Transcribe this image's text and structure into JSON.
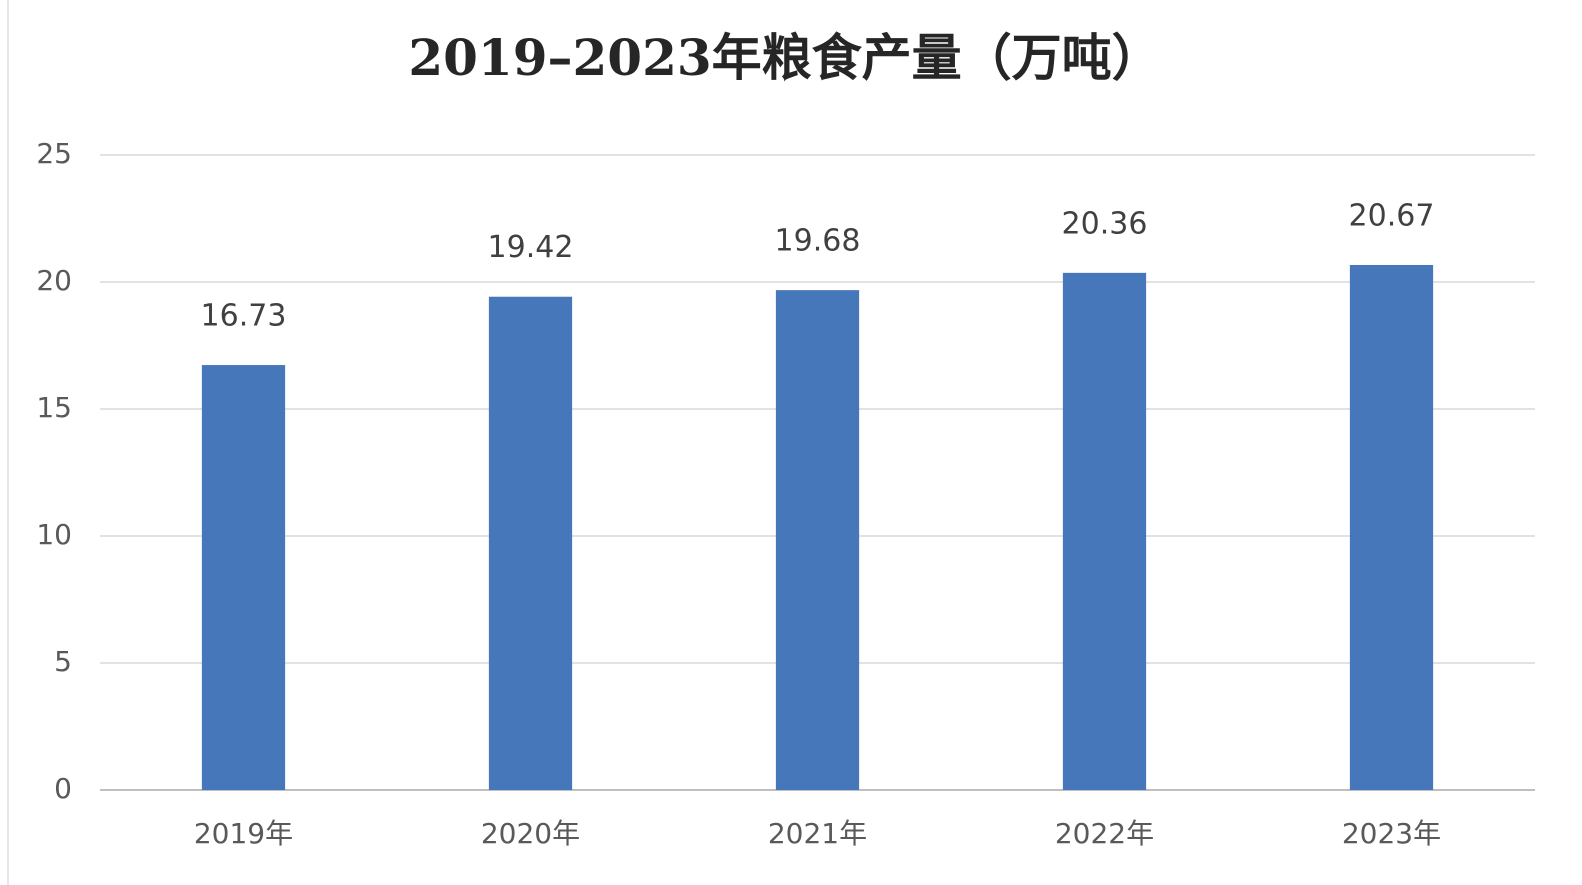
{
  "chart_data": {
    "type": "bar",
    "title": "2019–2023年粮食产量（万吨）",
    "categories": [
      "2019年",
      "2020年",
      "2021年",
      "2022年",
      "2023年"
    ],
    "values": [
      16.73,
      19.42,
      19.68,
      20.36,
      20.67
    ],
    "color": "#4677bb",
    "ylim": [
      0,
      25
    ],
    "yticks": [
      0,
      5,
      10,
      15,
      20,
      25
    ],
    "grid": true
  }
}
